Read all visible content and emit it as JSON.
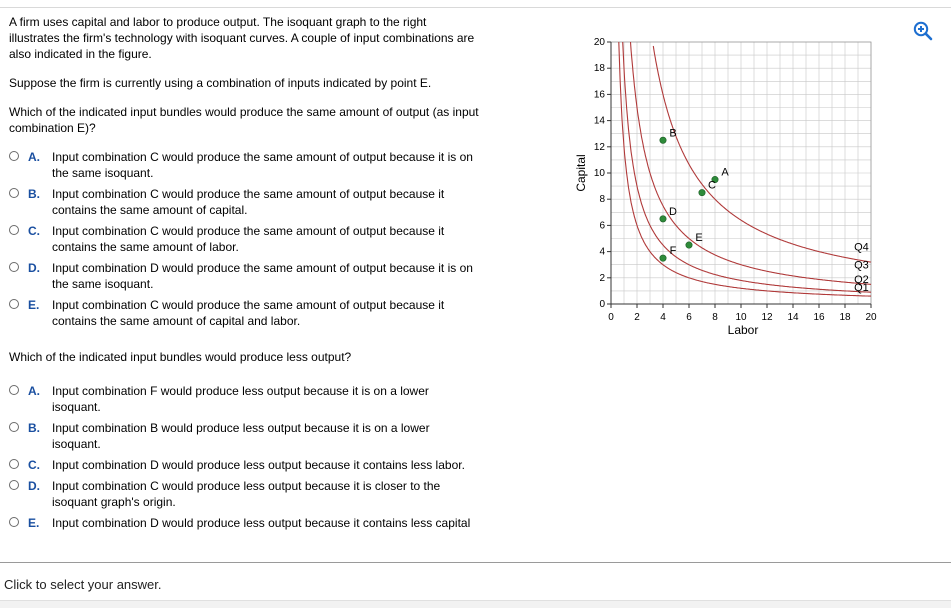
{
  "intro": "A firm uses capital and labor to produce output. The isoquant graph to the right illustrates the firm's technology with isoquant curves. A couple of input combinations are also indicated in the figure.",
  "suppose": "Suppose the firm is currently using a combination of inputs indicated by point E.",
  "question1": {
    "prompt": "Which of the indicated input bundles would produce the same amount of output (as input combination E)?",
    "options": [
      {
        "letter": "A.",
        "text": "Input combination C would produce the same amount of output because it is on the same isoquant."
      },
      {
        "letter": "B.",
        "text": "Input combination C would produce the same amount of output because it contains the same amount of capital."
      },
      {
        "letter": "C.",
        "text": "Input combination C would produce the same amount of output because it contains the same amount of labor."
      },
      {
        "letter": "D.",
        "text": "Input combination D would produce the same amount of output because it is on the same isoquant."
      },
      {
        "letter": "E.",
        "text": "Input combination C would produce the same amount of output because it contains the same amount of capital and labor."
      }
    ]
  },
  "question2": {
    "prompt": "Which of the indicated input bundles would produce less output?",
    "options": [
      {
        "letter": "A.",
        "text": "Input combination F would produce less output because it is on a lower isoquant."
      },
      {
        "letter": "B.",
        "text": "Input combination B would produce less output because it is on a lower isoquant."
      },
      {
        "letter": "C.",
        "text": "Input combination D would produce less output because it contains less labor."
      },
      {
        "letter": "D.",
        "text": "Input combination C would produce less output because it is closer to the isoquant graph's origin."
      },
      {
        "letter": "E.",
        "text": "Input combination D would produce less output because it contains less capital"
      }
    ]
  },
  "footer": "Click to select your answer.",
  "zoom_icon": "zoom-in-icon",
  "colors": {
    "accent": "#1a4fa0",
    "curve": "#b03a3a",
    "point": "#2e8b3a",
    "grid": "#c8c8c8",
    "zoom": "#1e6fd0"
  },
  "chart_data": {
    "type": "line",
    "xlabel": "Labor",
    "ylabel": "Capital",
    "xlim": [
      0,
      20
    ],
    "ylim": [
      0,
      20
    ],
    "xticks": [
      0,
      2,
      4,
      6,
      8,
      10,
      12,
      14,
      16,
      18,
      20
    ],
    "yticks": [
      0,
      2,
      4,
      6,
      8,
      10,
      12,
      14,
      16,
      18,
      20
    ],
    "grid": true,
    "series": [
      {
        "name": "Q1",
        "k": 0.3
      },
      {
        "name": "Q2",
        "k": 0.45
      },
      {
        "name": "Q3",
        "k": 0.75
      },
      {
        "name": "Q4",
        "k": 1.6
      }
    ],
    "curve_labels": [
      {
        "text": "Q4",
        "x": 18.7,
        "y": 4.4
      },
      {
        "text": "Q3",
        "x": 18.7,
        "y": 3.0
      },
      {
        "text": "Q2",
        "x": 18.7,
        "y": 1.9
      },
      {
        "text": "Q1",
        "x": 18.7,
        "y": 1.3
      }
    ],
    "points": [
      {
        "label": "B",
        "x": 4.0,
        "y": 12.5
      },
      {
        "label": "A",
        "x": 8.0,
        "y": 9.5
      },
      {
        "label": "C",
        "x": 7.0,
        "y": 8.5
      },
      {
        "label": "D",
        "x": 4.0,
        "y": 6.5
      },
      {
        "label": "E",
        "x": 6.0,
        "y": 4.5
      },
      {
        "label": "F",
        "x": 4.0,
        "y": 3.5
      }
    ]
  }
}
